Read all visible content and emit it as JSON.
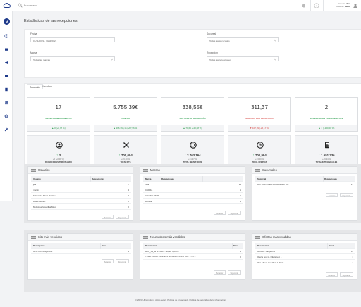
{
  "topbar": {
    "search_placeholder": "Buscar aquí",
    "user_line1_label": "Usuario:",
    "user_line1_value": "dev",
    "user_line2_label": "Usuario:",
    "user_line2_value": "jsmh"
  },
  "sidebar": {
    "avatar_initial": "M",
    "icons": [
      "clock-icon",
      "cart-icon",
      "megaphone-icon",
      "map-icon",
      "document-icon",
      "users-icon",
      "settings-icon",
      "tools-icon"
    ]
  },
  "page": {
    "title": "Estadísticas de las recepciones"
  },
  "filters": {
    "fecha_label": "Fecha",
    "fecha_value": "01/11/2021 - 30/11/2021",
    "sucursal_label": "Sucursal",
    "sucursal_value": "Todas las sucursales",
    "marca_label": "Marca",
    "marca_value": "Todas las marcas",
    "recepcion_label": "Recepción",
    "recepcion_value": "Todas las recepciones"
  },
  "tabs": [
    {
      "label": "Recepción",
      "active": true
    },
    {
      "label": "Visualizar",
      "active": false
    }
  ],
  "kpis": [
    {
      "value": "17",
      "label": "RECEPCIONES ABIERTAS",
      "delta": "▲ 0 (+0,77 %)",
      "trend": "up"
    },
    {
      "value": "5.755,39€",
      "label": "VENTAS",
      "delta": "▲ 166.368,16 (+87,96 %)",
      "trend": "up"
    },
    {
      "value": "338,55€",
      "label": "VENTAS POR RECEPCIÓN",
      "delta": "▲ 70,66 (+20,68 %)",
      "trend": "up"
    },
    {
      "value": "311,37",
      "label": "MINUTOS POR RECEPCIÓN",
      "delta": "▼ 107,39 (-25,17 %)",
      "trend": "down"
    },
    {
      "value": "2",
      "label": "RECEPCIONES PAGO/ABIERTAS",
      "delta": "▲ 1 (+100,00 %)",
      "trend": "up"
    }
  ],
  "kpis_secondary": [
    {
      "icon": "user-circle-icon",
      "value": "3",
      "sub": "+0 (+0,00 %)",
      "label": "RECEPCIONES POR USUARIO"
    },
    {
      "icon": "tools-icon",
      "value": "700,004",
      "sub": "+66,20 %",
      "label": "TOTAL KITS"
    },
    {
      "icon": "tire-icon",
      "value": "2.703,164",
      "sub": "+31,27 %",
      "label": "TOTAL NEUMÁTICOS"
    },
    {
      "icon": "clock-icon",
      "value": "700,994",
      "sub": "+33,00 %",
      "label": "TOTAL OFERTAS"
    },
    {
      "icon": "calculator-icon",
      "value": "1.651,236",
      "sub": "+46,24 %",
      "label": "TOTAL KITS MANUALES"
    }
  ],
  "panels_top": [
    {
      "title": "Usuarios",
      "col1": "Usuario",
      "col2": "Recepciones",
      "rows": [
        {
          "name": "jdill",
          "count": "7"
        },
        {
          "name": "martin",
          "count": "4"
        },
        {
          "name": "Sebastián Albert Martínez",
          "count": "2"
        },
        {
          "name": "David Gómez",
          "count": "2"
        },
        {
          "name": "M.Andrea Moscillas Mayo",
          "count": "2"
        }
      ],
      "prev": "Anterior",
      "next": "Siguiente"
    },
    {
      "title": "Marcas",
      "col1": "Marca",
      "col2": "Recepciones",
      "rows": [
        {
          "name": "Seat",
          "count": "14"
        },
        {
          "name": "CUPRA",
          "count": "1"
        },
        {
          "name": "CICSTO (MAR)",
          "count": "1"
        },
        {
          "name": "Renault",
          "count": "1"
        }
      ],
      "prev": "Anterior",
      "next": "Siguiente"
    },
    {
      "title": "Sucursales",
      "col1": "Sucursal",
      "col2": "Recepciones",
      "rows": [
        {
          "name": "AUTOMOVILES RODRÍGUEZ S.L.",
          "count": "17"
        }
      ],
      "prev": "Anterior",
      "next": "Siguiente"
    }
  ],
  "panels_bottom": [
    {
      "title": "Kits más vendidos",
      "col1": "Descripción",
      "col2": "Total",
      "rows": [
        {
          "name": "001 - Kuro Eagle 001",
          "count": "3"
        }
      ],
      "prev": "Anterior",
      "next": "Siguiente"
    },
    {
      "title": "Neumáticos más vendidos",
      "col1": "Descripción",
      "col2": "Total",
      "rows": [
        {
          "name": "HKC_09_WT274905 - Super Sport R",
          "count": "4"
        },
        {
          "name": "T25/40 0/1 R18 - neumático de invierno T/25/40 TR8 - 1.5.3 ...",
          "count": "2"
        }
      ],
      "prev": "Anterior",
      "next": "Siguiente"
    },
    {
      "title": "Ofertas más vendidas",
      "col1": "Descripción",
      "col2": "Total",
      "rows": [
        {
          "name": "000016 - kargator x",
          "count": "11"
        },
        {
          "name": "Oferta test 1 - Oferta test 1",
          "count": "1"
        },
        {
          "name": "001 - Test - Test Plus 1 (Test)",
          "count": "1"
        }
      ],
      "prev": "Anterior",
      "next": "Siguiente"
    }
  ],
  "footer": {
    "text": "© 2023 Ultramotion · Aviso legal · Política de privacidad · Política de seguridad de la información"
  },
  "colors": {
    "green": "#2e9e4f",
    "red": "#d9534f",
    "navy": "#1e3a8a"
  }
}
